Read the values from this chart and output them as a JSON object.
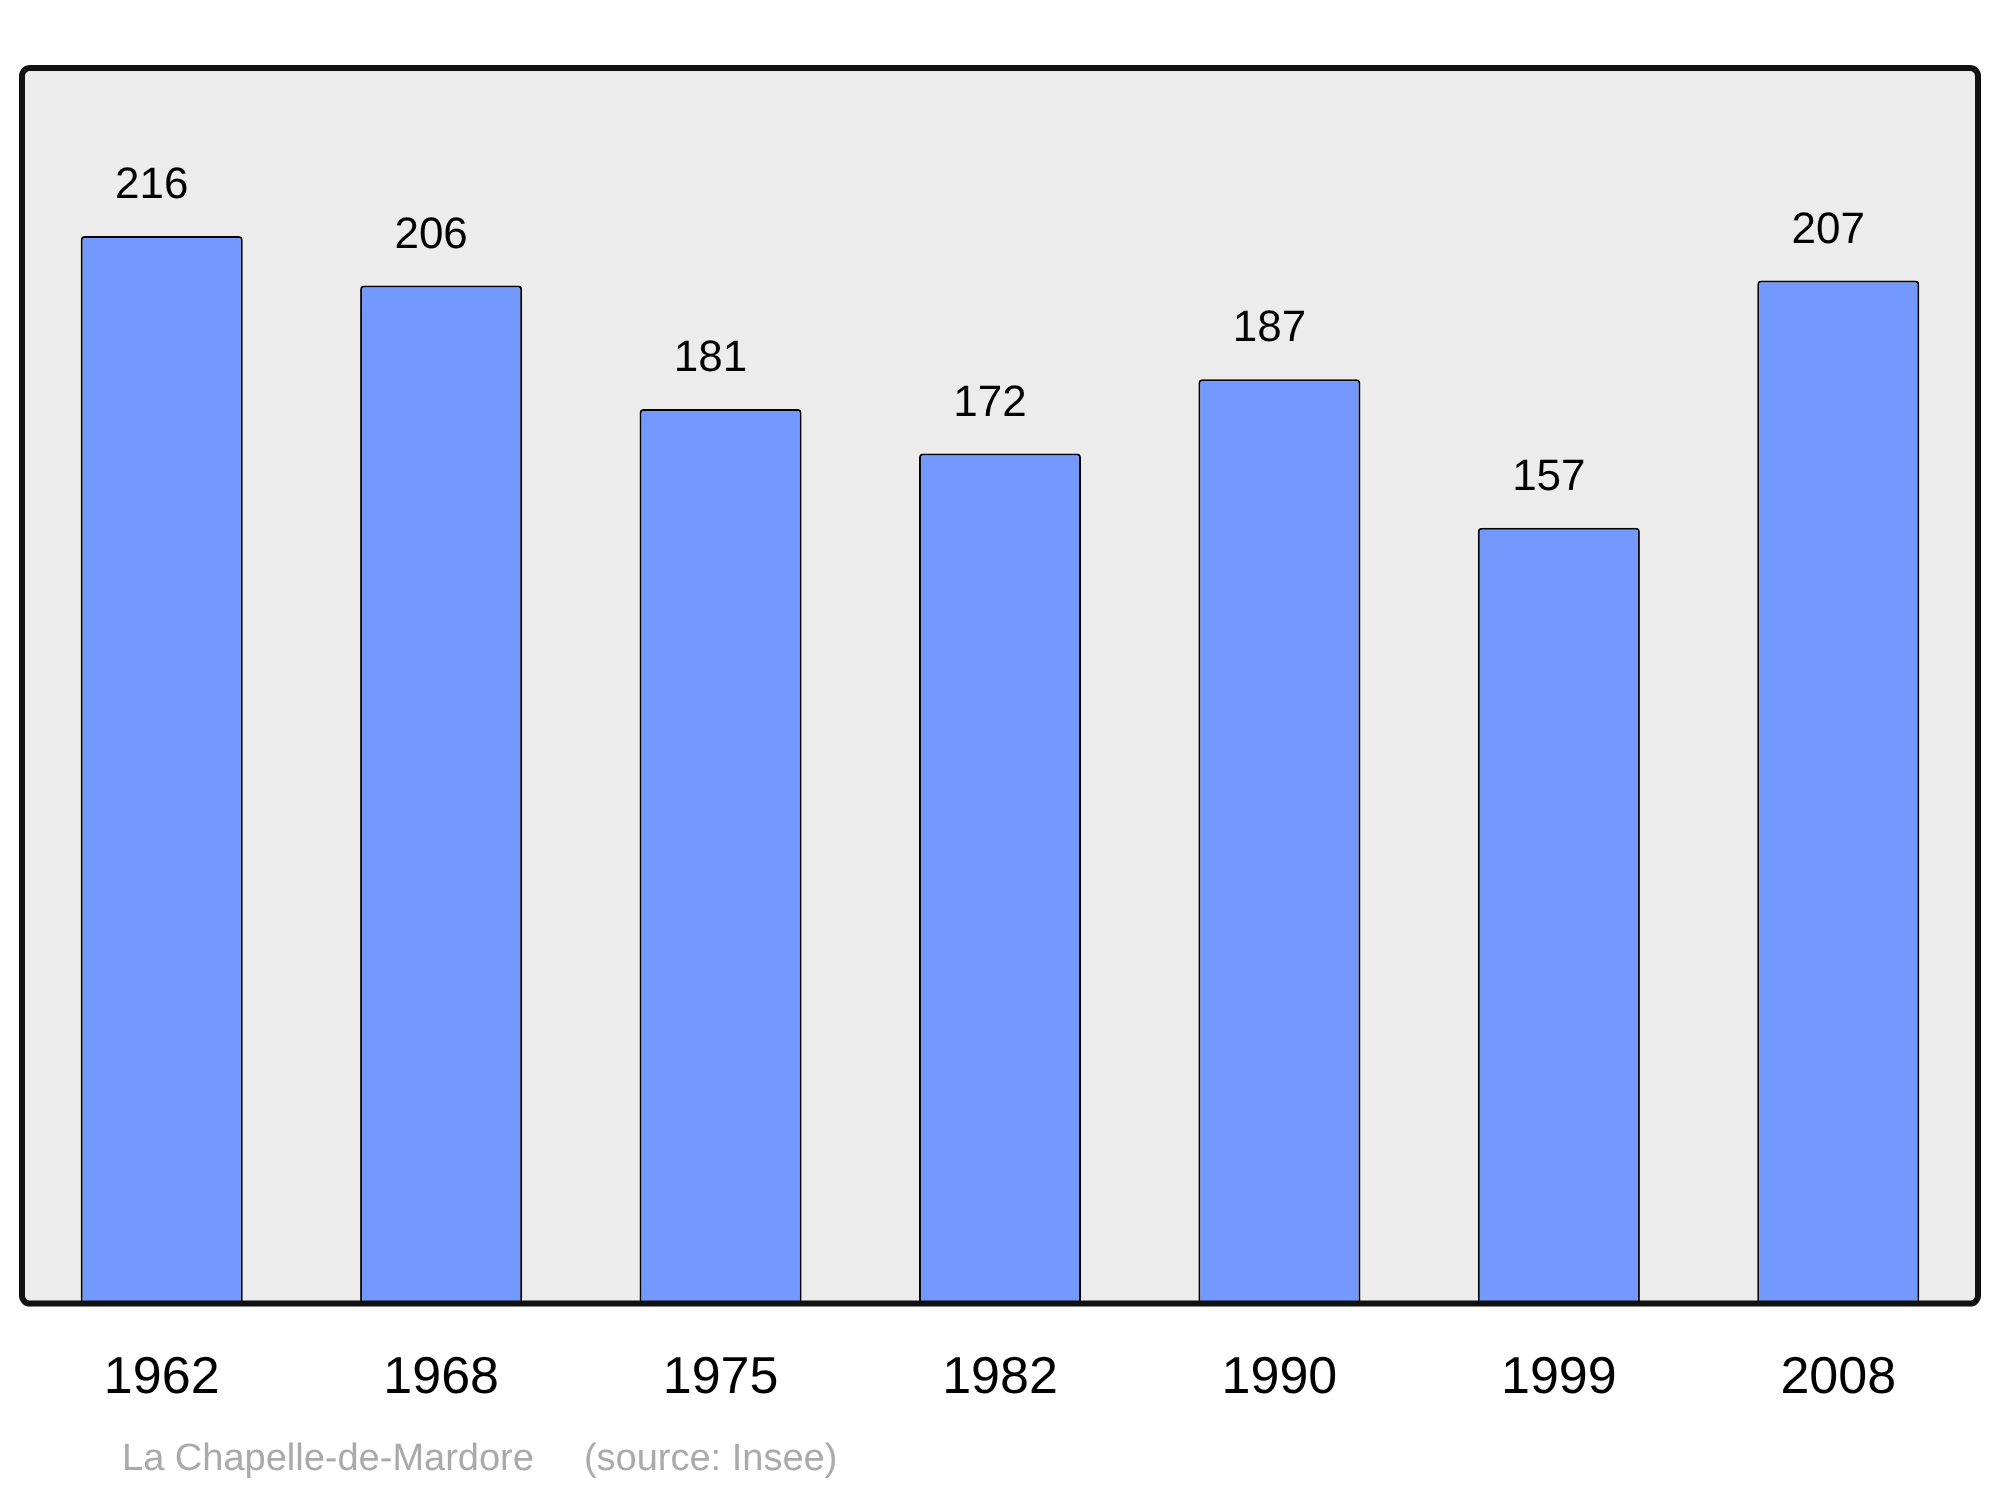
{
  "chart_data": {
    "type": "bar",
    "categories": [
      "1962",
      "1968",
      "1975",
      "1982",
      "1990",
      "1999",
      "2008"
    ],
    "values": [
      216,
      206,
      181,
      172,
      187,
      157,
      207
    ],
    "color": "#7399ff",
    "data_labels": true,
    "annotations": [
      "La Chapelle-de-Mardore",
      "(source: Insee)"
    ]
  }
}
